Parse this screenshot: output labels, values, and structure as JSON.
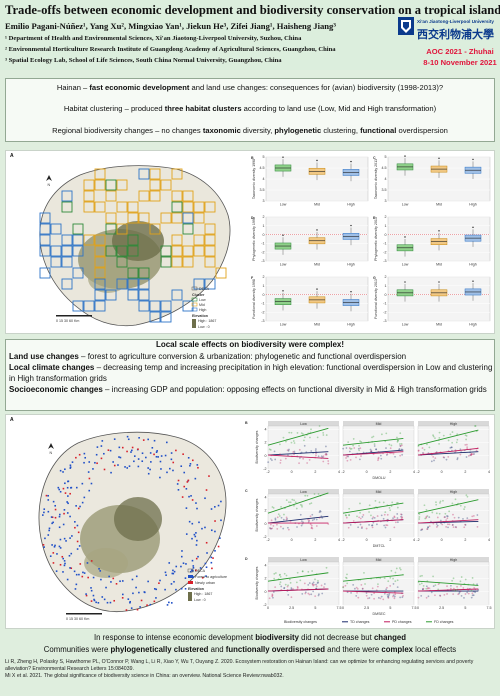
{
  "header": {
    "title": "Trade-offs between economic development and biodiversity conservation on a tropical island",
    "authors": "Emilio Pagani-Núñez¹, Yang Xu², Mingxiao Yan¹, Jiekun He³, Zifei Jiang¹, Haisheng Jiang³",
    "affiliations": [
      "¹ Department of Health and Environmental Sciences, Xi'an Jiaotong-Liverpool University, Suzhou, China",
      "² Environmental Horticulture Research Institute of Guangdong Academy of Agricultural Sciences, Guangzhou, China",
      "³ Spatial Ecology Lab, School of Life Sciences, South China Normal University, Guangzhou, China"
    ],
    "logo_en": "Xi'an Jiaotong-Liverpool University",
    "logo_cn": "西交利物浦大學",
    "conference": "AOC 2021 - Zhuhai",
    "conference_dates": "8-10 November 2021"
  },
  "intro": {
    "line1_a": "Hainan – ",
    "line1_b": "fast economic development",
    "line1_c": " and land use changes: consequences for (avian) biodiversity (1998-2013)?",
    "line2_a": "Habitat clustering – produced ",
    "line2_b": "three habitat clusters",
    "line2_c": " according to land use (Low, Mid and High transformation)",
    "line3_a": "Regional biodiversity changes – no changes ",
    "line3_b": "taxonomic",
    "line3_c": " diversity, ",
    "line3_d": "phylogenetic",
    "line3_e": " clustering, ",
    "line3_f": "functional",
    "line3_g": " overdispersion"
  },
  "fig1": {
    "map_label": "A",
    "legend": [
      "DECA",
      "Cluster",
      "Low",
      "Mid",
      "High",
      "Elevation",
      "High : 1867",
      "Low : 0"
    ],
    "scale": "0  15  30   60 Km",
    "panel_labels": [
      "B",
      "C",
      "D",
      "E",
      "F",
      "G"
    ],
    "ylabels": [
      "Taxonomic diversity 1998",
      "Taxonomic diversity 2013",
      "Phylogenetic diversity 1998",
      "Phylogenetic diversity 2013",
      "Functional diversity 1998",
      "Functional diversity 2013"
    ],
    "xcats": [
      "Low",
      "Mid",
      "High"
    ]
  },
  "section2": {
    "heading": "Local scale effects on biodiversity were complex!",
    "p1_b": "Land use changes",
    "p1": " – forest to agriculture conversion & urbanization: phylogenetic and functional overdispersion",
    "p2_b": "Local climate changes",
    "p2": " – decreasing temp and increasing precipitation in high elevation: functional overdispersion in Low and clustering in High transformation grids",
    "p3_b": "Socioeconomic changes",
    "p3": " – increasing GDP and population: opposing effects on functional diversity in Mid & High transformation grids"
  },
  "fig2": {
    "map_label": "A",
    "legend": [
      "DECA",
      "Forest to agriculture",
      "Newly urban",
      "Elevation",
      "High : 1867",
      "Low : 0"
    ],
    "scale": "0  15  30   60 Km",
    "panel_labels": [
      "B",
      "C",
      "D"
    ],
    "facets": [
      "Low",
      "Mid",
      "High"
    ],
    "xlabels": [
      "DMOLU",
      "DMTCL",
      "DMSEC"
    ],
    "ylabel": "Biodiversity changes",
    "legend_title": "Biodiversity changes",
    "legend_items": [
      "TD changes",
      "PD changes",
      "FD changes"
    ],
    "colors": {
      "td": "#1b2a6b",
      "pd": "#c0195c",
      "fd": "#2c9b2f"
    }
  },
  "conclusion": {
    "line1_a": "In response to intense economic development ",
    "line1_b": "biodiversity",
    "line1_c": " did not decrease but ",
    "line1_d": "changed",
    "line2_a": "Communities were ",
    "line2_b": "phylogenetically clustered",
    "line2_c": " and ",
    "line2_d": "functionally overdispersed",
    "line2_e": " and there were ",
    "line2_f": "complex",
    "line2_g": " local effects"
  },
  "references": [
    "Li R, Zheng H, Polasky S, Hawthorne PL, O'Connor P, Wang L, Li R, Xiao Y, Wu T, Ouyang Z. 2020. Ecosystem restoration on Hainan Island: can we optimize for enhancing regulating services and poverty alleviation? Environmental Research Letters 15:084039.",
    "Mi X et al. 2021. The global significance of biodiversity science in China: an overview. National Science Review:nwab032."
  ]
}
